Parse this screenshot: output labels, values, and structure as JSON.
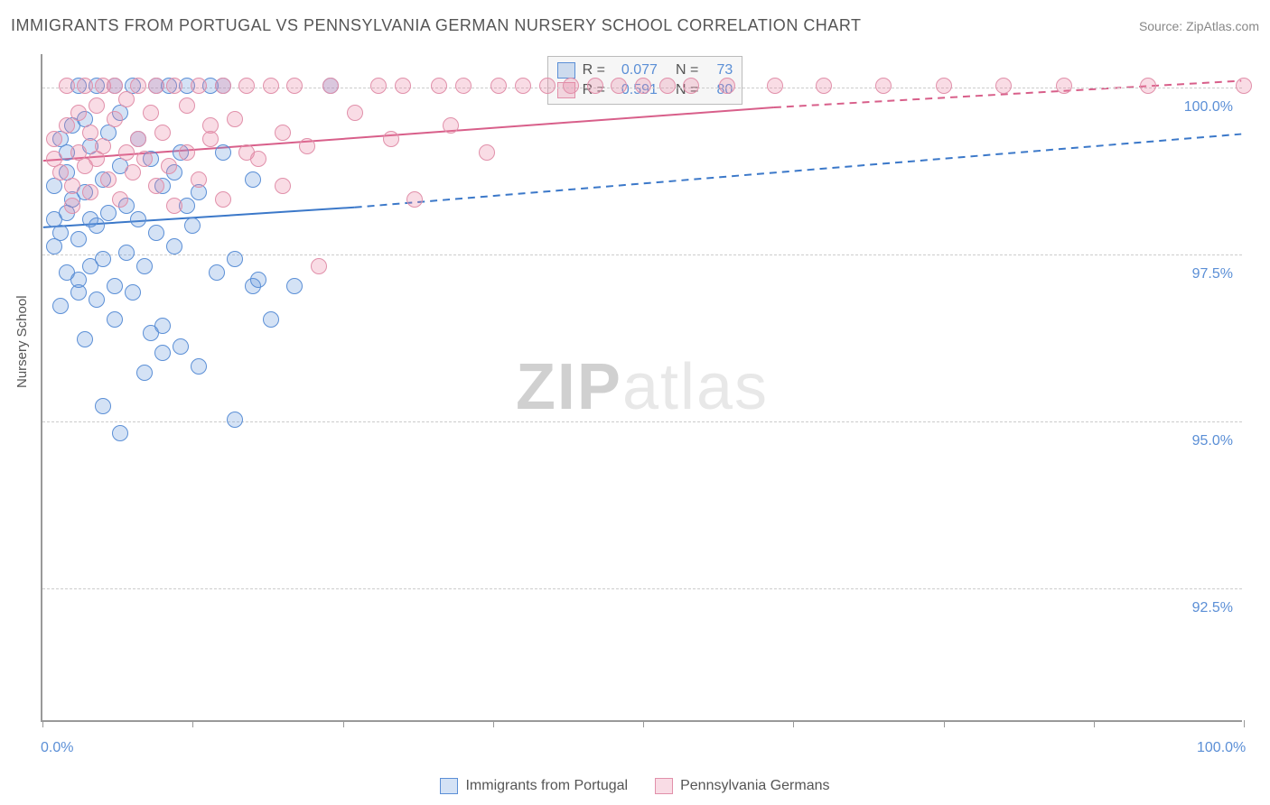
{
  "title": "IMMIGRANTS FROM PORTUGAL VS PENNSYLVANIA GERMAN NURSERY SCHOOL CORRELATION CHART",
  "source_label": "Source:",
  "source_value": "ZipAtlas.com",
  "y_axis_label": "Nursery School",
  "watermark_zip": "ZIP",
  "watermark_atlas": "atlas",
  "chart": {
    "type": "scatter",
    "background_color": "#ffffff",
    "grid_color": "#cccccc",
    "axis_color": "#999999",
    "xlim": [
      0,
      100
    ],
    "ylim": [
      90.5,
      100.5
    ],
    "y_ticks": [
      {
        "v": 92.5,
        "label": "92.5%"
      },
      {
        "v": 95.0,
        "label": "95.0%"
      },
      {
        "v": 97.5,
        "label": "97.5%"
      },
      {
        "v": 100.0,
        "label": "100.0%"
      }
    ],
    "x_ticks": [
      0,
      12.5,
      25,
      37.5,
      50,
      62.5,
      75,
      87.5,
      100
    ],
    "x_labels": [
      {
        "v": 0,
        "label": "0.0%"
      },
      {
        "v": 100,
        "label": "100.0%"
      }
    ],
    "marker_radius": 9,
    "marker_border_width": 1.5,
    "series": [
      {
        "name": "Immigrants from Portugal",
        "fill_color": "rgba(100,150,220,0.28)",
        "stroke_color": "#5b8fd6",
        "R": "0.077",
        "N": "73",
        "trend": {
          "x1": 0,
          "y1": 97.9,
          "x2_solid": 26,
          "y2_solid": 98.2,
          "x2_dash": 100,
          "y2_dash": 99.3,
          "color": "#3b78c9",
          "width": 2
        },
        "points": [
          [
            1,
            98.0
          ],
          [
            1,
            97.6
          ],
          [
            1,
            98.5
          ],
          [
            1.5,
            99.2
          ],
          [
            1.5,
            97.8
          ],
          [
            1.5,
            96.7
          ],
          [
            2,
            98.7
          ],
          [
            2,
            99.0
          ],
          [
            2,
            97.2
          ],
          [
            2,
            98.1
          ],
          [
            2.5,
            99.4
          ],
          [
            2.5,
            98.3
          ],
          [
            3,
            100.0
          ],
          [
            3,
            96.9
          ],
          [
            3,
            97.1
          ],
          [
            3,
            97.7
          ],
          [
            3.5,
            98.4
          ],
          [
            3.5,
            99.5
          ],
          [
            3.5,
            96.2
          ],
          [
            4,
            98.0
          ],
          [
            4,
            97.3
          ],
          [
            4,
            99.1
          ],
          [
            4.5,
            100.0
          ],
          [
            4.5,
            96.8
          ],
          [
            4.5,
            97.9
          ],
          [
            5,
            98.6
          ],
          [
            5,
            95.2
          ],
          [
            5,
            97.4
          ],
          [
            5.5,
            99.3
          ],
          [
            5.5,
            98.1
          ],
          [
            6,
            100.0
          ],
          [
            6,
            97.0
          ],
          [
            6,
            96.5
          ],
          [
            6.5,
            98.8
          ],
          [
            6.5,
            99.6
          ],
          [
            6.5,
            94.8
          ],
          [
            7,
            97.5
          ],
          [
            7,
            98.2
          ],
          [
            7.5,
            100.0
          ],
          [
            7.5,
            96.9
          ],
          [
            8,
            98.0
          ],
          [
            8,
            99.2
          ],
          [
            8.5,
            97.3
          ],
          [
            8.5,
            95.7
          ],
          [
            9,
            98.9
          ],
          [
            9,
            96.3
          ],
          [
            9.5,
            100.0
          ],
          [
            9.5,
            97.8
          ],
          [
            10,
            98.5
          ],
          [
            10,
            96.0
          ],
          [
            10,
            96.4
          ],
          [
            10.5,
            100.0
          ],
          [
            11,
            97.6
          ],
          [
            11,
            98.7
          ],
          [
            11.5,
            99.0
          ],
          [
            11.5,
            96.1
          ],
          [
            12,
            98.2
          ],
          [
            12,
            100.0
          ],
          [
            12.5,
            97.9
          ],
          [
            13,
            95.8
          ],
          [
            13,
            98.4
          ],
          [
            14,
            100.0
          ],
          [
            14.5,
            97.2
          ],
          [
            15,
            100.0
          ],
          [
            15,
            99.0
          ],
          [
            16,
            97.4
          ],
          [
            16,
            95.0
          ],
          [
            17.5,
            97.0
          ],
          [
            17.5,
            98.6
          ],
          [
            18,
            97.1
          ],
          [
            19,
            96.5
          ],
          [
            21,
            97.0
          ],
          [
            24,
            100.0
          ]
        ]
      },
      {
        "name": "Pennsylvania Germans",
        "fill_color": "rgba(235,130,160,0.28)",
        "stroke_color": "#e190aa",
        "R": "0.591",
        "N": "80",
        "trend": {
          "x1": 0,
          "y1": 98.9,
          "x2_solid": 61,
          "y2_solid": 99.7,
          "x2_dash": 100,
          "y2_dash": 100.1,
          "color": "#d85f8a",
          "width": 2
        },
        "points": [
          [
            1,
            98.9
          ],
          [
            1,
            99.2
          ],
          [
            1.5,
            98.7
          ],
          [
            2,
            99.4
          ],
          [
            2,
            100.0
          ],
          [
            2.5,
            98.5
          ],
          [
            2.5,
            98.2
          ],
          [
            3,
            99.6
          ],
          [
            3,
            99.0
          ],
          [
            3.5,
            98.8
          ],
          [
            3.5,
            100.0
          ],
          [
            4,
            99.3
          ],
          [
            4,
            98.4
          ],
          [
            4.5,
            99.7
          ],
          [
            4.5,
            98.9
          ],
          [
            5,
            100.0
          ],
          [
            5,
            99.1
          ],
          [
            5.5,
            98.6
          ],
          [
            6,
            99.5
          ],
          [
            6,
            100.0
          ],
          [
            6.5,
            98.3
          ],
          [
            7,
            99.8
          ],
          [
            7,
            99.0
          ],
          [
            7.5,
            98.7
          ],
          [
            8,
            100.0
          ],
          [
            8,
            99.2
          ],
          [
            8.5,
            98.9
          ],
          [
            9,
            99.6
          ],
          [
            9.5,
            98.5
          ],
          [
            9.5,
            100.0
          ],
          [
            10,
            99.3
          ],
          [
            10.5,
            98.8
          ],
          [
            11,
            100.0
          ],
          [
            11,
            98.2
          ],
          [
            12,
            99.7
          ],
          [
            12,
            99.0
          ],
          [
            13,
            100.0
          ],
          [
            13,
            98.6
          ],
          [
            14,
            99.4
          ],
          [
            14,
            99.2
          ],
          [
            15,
            98.3
          ],
          [
            15,
            100.0
          ],
          [
            16,
            99.5
          ],
          [
            17,
            99.0
          ],
          [
            17,
            100.0
          ],
          [
            18,
            98.9
          ],
          [
            19,
            100.0
          ],
          [
            20,
            99.3
          ],
          [
            20,
            98.5
          ],
          [
            21,
            100.0
          ],
          [
            22,
            99.1
          ],
          [
            23,
            97.3
          ],
          [
            24,
            100.0
          ],
          [
            26,
            99.6
          ],
          [
            28,
            100.0
          ],
          [
            29,
            99.2
          ],
          [
            30,
            100.0
          ],
          [
            31,
            98.3
          ],
          [
            33,
            100.0
          ],
          [
            34,
            99.4
          ],
          [
            35,
            100.0
          ],
          [
            37,
            99.0
          ],
          [
            38,
            100.0
          ],
          [
            40,
            100.0
          ],
          [
            42,
            100.0
          ],
          [
            44,
            100.0
          ],
          [
            46,
            100.0
          ],
          [
            48,
            100.0
          ],
          [
            50,
            100.0
          ],
          [
            52,
            100.0
          ],
          [
            54,
            100.0
          ],
          [
            57,
            100.0
          ],
          [
            61,
            100.0
          ],
          [
            65,
            100.0
          ],
          [
            70,
            100.0
          ],
          [
            75,
            100.0
          ],
          [
            80,
            100.0
          ],
          [
            85,
            100.0
          ],
          [
            92,
            100.0
          ],
          [
            100,
            100.0
          ]
        ]
      }
    ],
    "legend_box": {
      "bg": "#f6f6f6",
      "border": "#bbbbbb",
      "text_color": "#555555",
      "value_color": "#5b8fd6",
      "R_label": "R =",
      "N_label": "N ="
    }
  }
}
